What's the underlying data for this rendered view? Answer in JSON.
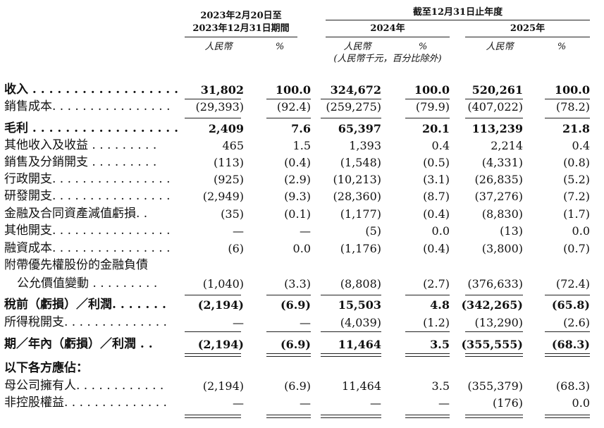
{
  "header": {
    "period1_line1": "2023年2月20日至",
    "period1_line2": "2023年12月31日期間",
    "year_end_group": "截至12月31日止年度",
    "year_2024": "2024年",
    "year_2025": "2025年",
    "currency": "人民幣",
    "percent": "%",
    "unit_note": "(人民幣千元，百分比除外)"
  },
  "rows": [
    {
      "label": "收入 . . . . . . . . . . . . . . . . . .",
      "bold": true,
      "values": [
        "31,802",
        "100.0",
        "324,672",
        "100.0",
        "520,261",
        "100.0"
      ]
    },
    {
      "label": "銷售成本. . . . . . . . . . . . . . . .",
      "bold": false,
      "values": [
        "(29,393)",
        "(92.4)",
        "(259,275)",
        "(79.9)",
        "(407,022)",
        "(78.2)"
      ]
    },
    {
      "label": "毛利 . . . . . . . . . . . . . . . . . .",
      "bold": true,
      "values": [
        "2,409",
        "7.6",
        "65,397",
        "20.1",
        "113,239",
        "21.8"
      ]
    },
    {
      "label": "其他收入及收益 . . . . . . . . .",
      "bold": false,
      "values": [
        "465",
        "1.5",
        "1,393",
        "0.4",
        "2,214",
        "0.4"
      ]
    },
    {
      "label": "銷售及分銷開支 . . . . . . . . .",
      "bold": false,
      "values": [
        "(113)",
        "(0.4)",
        "(1,548)",
        "(0.5)",
        "(4,331)",
        "(0.8)"
      ]
    },
    {
      "label": "行政開支. . . . . . . . . . . . . . . .",
      "bold": false,
      "values": [
        "(925)",
        "(2.9)",
        "(10,213)",
        "(3.1)",
        "(26,835)",
        "(5.2)"
      ]
    },
    {
      "label": "研發開支. . . . . . . . . . . . . . . .",
      "bold": false,
      "values": [
        "(2,949)",
        "(9.3)",
        "(28,360)",
        "(8.7)",
        "(37,276)",
        "(7.2)"
      ]
    },
    {
      "label": "金融及合同資產減值虧損. .",
      "bold": false,
      "values": [
        "(35)",
        "(0.1)",
        "(1,177)",
        "(0.4)",
        "(8,830)",
        "(1.7)"
      ]
    },
    {
      "label": "其他開支. . . . . . . . . . . . . . . .",
      "bold": false,
      "values": [
        "—",
        "—",
        "(5)",
        "0.0",
        "(13)",
        "0.0"
      ]
    },
    {
      "label": "融資成本. . . . . . . . . . . . . . . .",
      "bold": false,
      "values": [
        "(6)",
        "0.0",
        "(1,176)",
        "(0.4)",
        "(3,800)",
        "(0.7)"
      ]
    },
    {
      "label": "附帶優先權股份的金融負債",
      "bold": false,
      "values": [
        "",
        "",
        "",
        "",
        "",
        ""
      ]
    },
    {
      "label": "公允價值變動 . . . . . . . . .",
      "bold": false,
      "indent": true,
      "values": [
        "(1,040)",
        "(3.3)",
        "(8,808)",
        "(2.7)",
        "(376,633)",
        "(72.4)"
      ]
    },
    {
      "label": "稅前（虧損）／利潤. . . . . . .",
      "bold": true,
      "values": [
        "(2,194)",
        "(6.9)",
        "15,503",
        "4.8",
        "(342,265)",
        "(65.8)"
      ]
    },
    {
      "label": "所得稅開支. . . . . . . . . . . . . .",
      "bold": false,
      "values": [
        "—",
        "—",
        "(4,039)",
        "(1.2)",
        "(13,290)",
        "(2.6)"
      ]
    },
    {
      "label": "期／年內（虧損）／利潤 . .",
      "bold": true,
      "values": [
        "(2,194)",
        "(6.9)",
        "11,464",
        "3.5",
        "(355,555)",
        "(68.3)"
      ]
    },
    {
      "label": "以下各方應佔：",
      "bold": true,
      "values": [
        "",
        "",
        "",
        "",
        "",
        ""
      ]
    },
    {
      "label": "母公司擁有人. . . . . . . . . . . .",
      "bold": false,
      "values": [
        "(2,194)",
        "(6.9)",
        "11,464",
        "3.5",
        "(355,379)",
        "(68.3)"
      ]
    },
    {
      "label": "非控股權益. . . . . . . . . . . . . .",
      "bold": false,
      "values": [
        "—",
        "—",
        "—",
        "—",
        "(176)",
        "0.0"
      ]
    }
  ]
}
